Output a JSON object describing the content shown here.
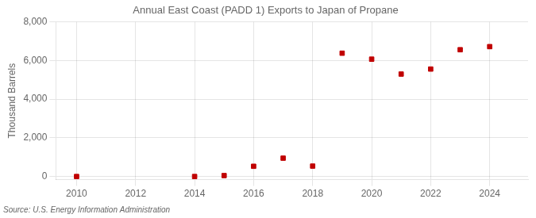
{
  "chart_data": {
    "type": "scatter",
    "title": "Annual East Coast (PADD 1) Exports to Japan of Propane",
    "y_label": "Thousand Barrels",
    "annotations": [
      "Source: U.S. Energy Information Administration"
    ],
    "x": [
      2010,
      2014,
      2015,
      2016,
      2017,
      2018,
      2019,
      2020,
      2021,
      2022,
      2023,
      2024
    ],
    "values": [
      0,
      0,
      50,
      530,
      950,
      540,
      6380,
      6070,
      5300,
      5560,
      6560,
      6720
    ],
    "xlim": [
      2009.3,
      2025.3
    ],
    "xticks": [
      2010,
      2012,
      2014,
      2016,
      2018,
      2020,
      2022,
      2024
    ],
    "ylim": [
      -160,
      8000
    ],
    "yticks": [
      0,
      {
        "value": 2000,
        "label": "2,000"
      },
      {
        "value": 4000,
        "label": "4,000"
      },
      {
        "value": 6000,
        "label": "6,000"
      },
      {
        "value": 8000,
        "label": "8,000"
      }
    ],
    "color": "#c00000",
    "marker": "square",
    "grid": true
  }
}
